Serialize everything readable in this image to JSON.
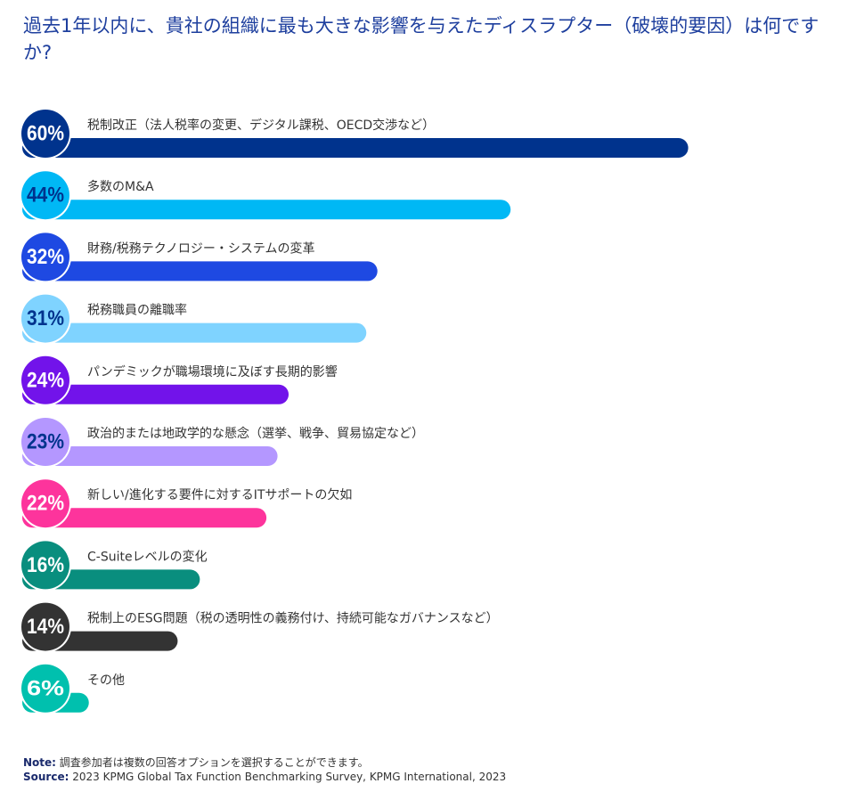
{
  "chart_data": {
    "type": "bar",
    "title": "過去1年以内に、貴社の組織に最も大きな影響を与えたディスラプター（破壊的要因）は何ですか?",
    "categories": [
      "税制改正（法人税率の変更、デジタル課税、OECD交渉など）",
      "多数のM&A",
      "財務/税務テクノロジー・システムの変革",
      "税務職員の離職率",
      "パンデミックが職場環境に及ぼす長期的影響",
      "政治的または地政学的な懸念（選挙、戦争、貿易協定など）",
      "新しい/進化する要件に対するITサポートの欠如",
      "C-Suiteレベルの変化",
      "税制上のESG問題（税の透明性の義務付け、持続可能なガバナンスなど）",
      "その他"
    ],
    "values": [
      60,
      44,
      32,
      31,
      24,
      23,
      22,
      16,
      14,
      6
    ],
    "value_labels": [
      "60%",
      "44%",
      "32%",
      "31%",
      "24%",
      "23%",
      "22%",
      "16%",
      "14%",
      "6%"
    ],
    "colors": [
      "#00338d",
      "#00b8f5",
      "#1e49e2",
      "#7fd3ff",
      "#7213ea",
      "#b497ff",
      "#fd349c",
      "#098e7e",
      "#333333",
      "#00c0ae"
    ],
    "label_colors": [
      "#ffffff",
      "#00338d",
      "#ffffff",
      "#00338d",
      "#ffffff",
      "#00338d",
      "#ffffff",
      "#ffffff",
      "#ffffff",
      "#ffffff"
    ],
    "note_label": "Note:",
    "note": "調査参加者は複数の回答オプションを選択することができます。",
    "source_label": "Source:",
    "source": "2023 KPMG Global Tax Function Benchmarking Survey, KPMG International, 2023"
  }
}
